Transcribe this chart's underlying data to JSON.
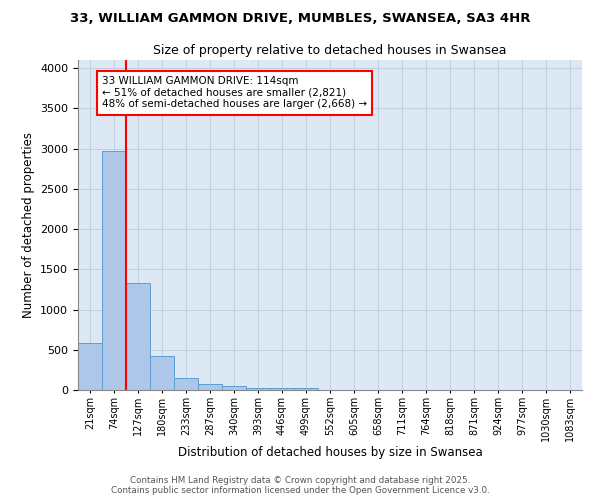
{
  "title_line1": "33, WILLIAM GAMMON DRIVE, MUMBLES, SWANSEA, SA3 4HR",
  "title_line2": "Size of property relative to detached houses in Swansea",
  "xlabel": "Distribution of detached houses by size in Swansea",
  "ylabel": "Number of detached properties",
  "bar_labels": [
    "21sqm",
    "74sqm",
    "127sqm",
    "180sqm",
    "233sqm",
    "287sqm",
    "340sqm",
    "393sqm",
    "446sqm",
    "499sqm",
    "552sqm",
    "605sqm",
    "658sqm",
    "711sqm",
    "764sqm",
    "818sqm",
    "871sqm",
    "924sqm",
    "977sqm",
    "1030sqm",
    "1083sqm"
  ],
  "bar_values": [
    580,
    2970,
    1330,
    420,
    155,
    70,
    45,
    30,
    30,
    30,
    0,
    0,
    0,
    0,
    0,
    0,
    0,
    0,
    0,
    0,
    0
  ],
  "bar_color": "#aec6e8",
  "bar_edge_color": "#5a9fd4",
  "grid_color": "#c8d8e8",
  "background_color": "#dce9f5",
  "vline_color": "red",
  "vline_x_index": 2,
  "annotation_text": "33 WILLIAM GAMMON DRIVE: 114sqm\n← 51% of detached houses are smaller (2,821)\n48% of semi-detached houses are larger (2,668) →",
  "ylim": [
    0,
    4100
  ],
  "yticks": [
    0,
    500,
    1000,
    1500,
    2000,
    2500,
    3000,
    3500,
    4000
  ],
  "footer_line1": "Contains HM Land Registry data © Crown copyright and database right 2025.",
  "footer_line2": "Contains public sector information licensed under the Open Government Licence v3.0."
}
